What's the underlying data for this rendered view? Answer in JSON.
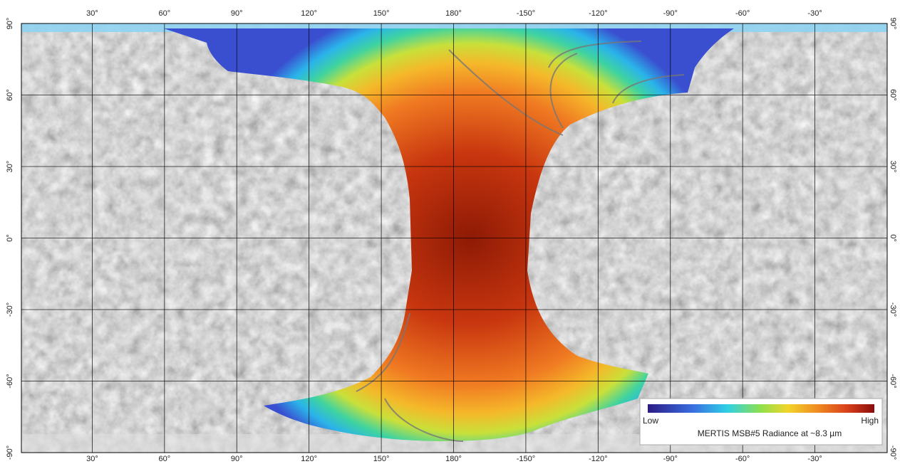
{
  "map": {
    "longitude_ticks": [
      {
        "value": 30,
        "label": "30°"
      },
      {
        "value": 60,
        "label": "60°"
      },
      {
        "value": 90,
        "label": "90°"
      },
      {
        "value": 120,
        "label": "120°"
      },
      {
        "value": 150,
        "label": "150°"
      },
      {
        "value": 180,
        "label": "180°"
      },
      {
        "value": -150,
        "label": "-150°"
      },
      {
        "value": -120,
        "label": "-120°"
      },
      {
        "value": -90,
        "label": "-90°"
      },
      {
        "value": -60,
        "label": "-60°"
      },
      {
        "value": -30,
        "label": "-30°"
      }
    ],
    "latitude_ticks": [
      {
        "value": 90,
        "label": "90°"
      },
      {
        "value": 60,
        "label": "60°"
      },
      {
        "value": 30,
        "label": "30°"
      },
      {
        "value": 0,
        "label": "0°"
      },
      {
        "value": -30,
        "label": "-30°"
      },
      {
        "value": -60,
        "label": "-60°"
      },
      {
        "value": -90,
        "label": "-90°"
      }
    ],
    "legend": {
      "low": "Low",
      "high": "High",
      "title": "MERTIS MSB#5 Radiance at ~8.3 µm"
    }
  }
}
